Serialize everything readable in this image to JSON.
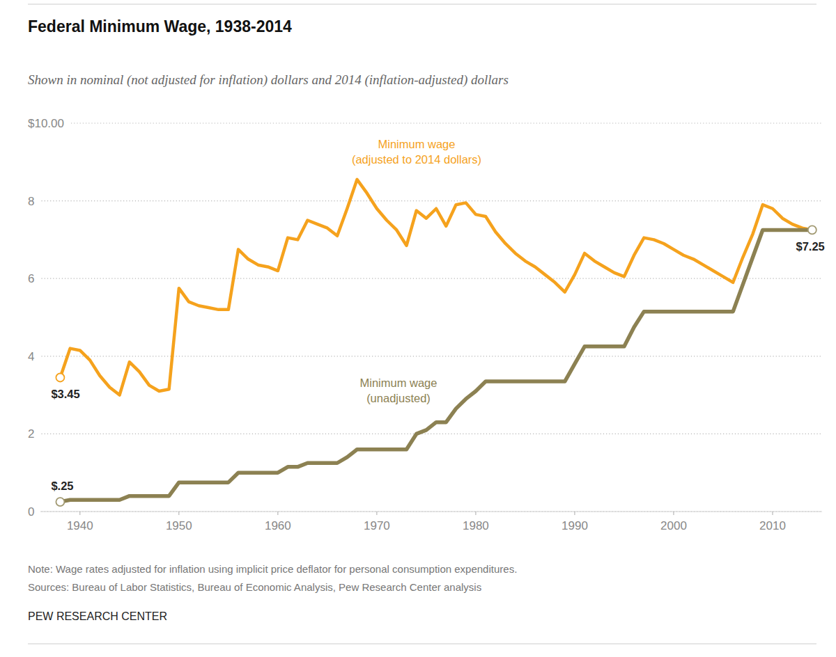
{
  "chart_data": {
    "type": "line",
    "title": "Federal Minimum Wage, 1938-2014",
    "subtitle": "Shown in nominal (not adjusted for inflation) dollars and 2014 (inflation-adjusted) dollars",
    "note": "Note: Wage rates adjusted for inflation using implicit price deflator for personal consumption expenditures.",
    "source": "Sources: Bureau of Labor Statistics, Bureau of Economic Analysis, Pew Research Center analysis",
    "credit": "PEW RESEARCH CENTER",
    "x": [
      1938,
      1939,
      1940,
      1941,
      1942,
      1943,
      1944,
      1945,
      1946,
      1947,
      1948,
      1949,
      1950,
      1951,
      1952,
      1953,
      1954,
      1955,
      1956,
      1957,
      1958,
      1959,
      1960,
      1961,
      1962,
      1963,
      1964,
      1965,
      1966,
      1967,
      1968,
      1969,
      1970,
      1971,
      1972,
      1973,
      1974,
      1975,
      1976,
      1977,
      1978,
      1979,
      1980,
      1981,
      1982,
      1983,
      1984,
      1985,
      1986,
      1987,
      1988,
      1989,
      1990,
      1991,
      1992,
      1993,
      1994,
      1995,
      1996,
      1997,
      1998,
      1999,
      2000,
      2001,
      2002,
      2003,
      2004,
      2005,
      2006,
      2007,
      2008,
      2009,
      2010,
      2011,
      2012,
      2013,
      2014
    ],
    "series": [
      {
        "name": "Minimum wage (adjusted to 2014 dollars)",
        "color": "#f5a21d",
        "line_style": "solid",
        "values": [
          3.45,
          4.2,
          4.15,
          3.9,
          3.5,
          3.2,
          3.0,
          3.85,
          3.6,
          3.25,
          3.1,
          3.15,
          5.75,
          5.4,
          5.3,
          5.25,
          5.2,
          5.2,
          6.75,
          6.5,
          6.35,
          6.3,
          6.2,
          7.05,
          7.0,
          7.5,
          7.4,
          7.3,
          7.1,
          7.8,
          8.55,
          8.2,
          7.8,
          7.5,
          7.25,
          6.85,
          7.75,
          7.55,
          7.8,
          7.35,
          7.9,
          7.95,
          7.65,
          7.6,
          7.2,
          6.9,
          6.65,
          6.45,
          6.3,
          6.1,
          5.9,
          5.65,
          6.1,
          6.65,
          6.45,
          6.3,
          6.15,
          6.05,
          6.6,
          7.05,
          7.0,
          6.9,
          6.75,
          6.6,
          6.5,
          6.35,
          6.2,
          6.05,
          5.9,
          6.55,
          7.15,
          7.9,
          7.8,
          7.55,
          7.4,
          7.3,
          7.25
        ]
      },
      {
        "name": "Minimum wage (unadjusted)",
        "color": "#8c8152",
        "line_style": "solid",
        "values": [
          0.25,
          0.3,
          0.3,
          0.3,
          0.3,
          0.3,
          0.3,
          0.4,
          0.4,
          0.4,
          0.4,
          0.4,
          0.75,
          0.75,
          0.75,
          0.75,
          0.75,
          0.75,
          1.0,
          1.0,
          1.0,
          1.0,
          1.0,
          1.15,
          1.15,
          1.25,
          1.25,
          1.25,
          1.25,
          1.4,
          1.6,
          1.6,
          1.6,
          1.6,
          1.6,
          1.6,
          2.0,
          2.1,
          2.3,
          2.3,
          2.65,
          2.9,
          3.1,
          3.35,
          3.35,
          3.35,
          3.35,
          3.35,
          3.35,
          3.35,
          3.35,
          3.35,
          3.8,
          4.25,
          4.25,
          4.25,
          4.25,
          4.25,
          4.75,
          5.15,
          5.15,
          5.15,
          5.15,
          5.15,
          5.15,
          5.15,
          5.15,
          5.15,
          5.15,
          5.85,
          6.55,
          7.25,
          7.25,
          7.25,
          7.25,
          7.25,
          7.25
        ]
      }
    ],
    "annotations": [
      {
        "text": "$3.45",
        "x": 1938,
        "y": 3.45
      },
      {
        "text": "$.25",
        "x": 1938,
        "y": 0.25
      },
      {
        "text": "$7.25",
        "x": 2014,
        "y": 7.25
      }
    ],
    "xlim": [
      1936,
      2015
    ],
    "xticks": [
      1940,
      1950,
      1960,
      1970,
      1980,
      1990,
      2000,
      2010
    ],
    "ylim": [
      0,
      10
    ],
    "yticks": [
      0,
      2,
      4,
      6,
      8,
      {
        "value": 10,
        "label": "$10.00"
      }
    ],
    "grid": true
  }
}
